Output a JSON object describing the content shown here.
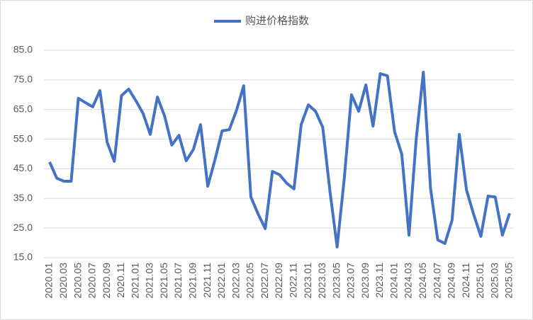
{
  "chart_data": {
    "type": "line",
    "categories": [
      "2020.01",
      null,
      "2020.03",
      null,
      "2020.05",
      null,
      "2020.07",
      null,
      "2020.09",
      null,
      "2020.11",
      null,
      "2021.01",
      null,
      "2021.03",
      null,
      "2021.05",
      null,
      "2021.07",
      null,
      "2021.09",
      null,
      "2021.11",
      null,
      "2022.01",
      null,
      "2022.03",
      null,
      "2022.05",
      null,
      "2022.07",
      null,
      "2022.09",
      null,
      "2022.11",
      null,
      "2023.01",
      null,
      "2023.03",
      null,
      "2023.05",
      null,
      "2023.07",
      null,
      "2023.09",
      null,
      "2023.11",
      null,
      "2024.01",
      null,
      "2024.03",
      null,
      "2024.05",
      null,
      "2024.07",
      null,
      "2024.09",
      null,
      "2024.11",
      null,
      "2025.01",
      null,
      "2025.03",
      null,
      "2025.05"
    ],
    "series": [
      {
        "name": "购进价格指数",
        "color": "#4472c4",
        "values": [
          47.3,
          41.8,
          40.8,
          40.8,
          68.8,
          67.3,
          65.9,
          71.4,
          54.0,
          47.5,
          69.7,
          71.9,
          68.0,
          63.7,
          56.6,
          69.2,
          62.8,
          53.0,
          56.3,
          47.7,
          51.5,
          59.9,
          39.1,
          48.0,
          57.8,
          58.2,
          64.7,
          73.0,
          35.5,
          29.8,
          24.8,
          44.1,
          43.0,
          40.1,
          38.2,
          59.9,
          66.6,
          64.4,
          59.0,
          37.5,
          18.6,
          41.8,
          70.0,
          64.4,
          73.3,
          59.4,
          77.1,
          76.4,
          57.5,
          49.9,
          22.6,
          54.9,
          77.6,
          38.4,
          21.0,
          19.8,
          27.7,
          56.6,
          37.9,
          29.6,
          22.2,
          35.8,
          35.5,
          22.6,
          30.0
        ]
      }
    ],
    "ylim": [
      15,
      85
    ],
    "yticks": [
      {
        "value": 15,
        "label": "15.0"
      },
      {
        "value": 25,
        "label": "25.0"
      },
      {
        "value": 35,
        "label": "35.0"
      },
      {
        "value": 45,
        "label": "45.0"
      },
      {
        "value": 55,
        "label": "55.0"
      },
      {
        "value": 65,
        "label": "65.0"
      },
      {
        "value": 75,
        "label": "75.0"
      },
      {
        "value": 85,
        "label": "85.0"
      }
    ],
    "grid": true,
    "legend": "top"
  }
}
